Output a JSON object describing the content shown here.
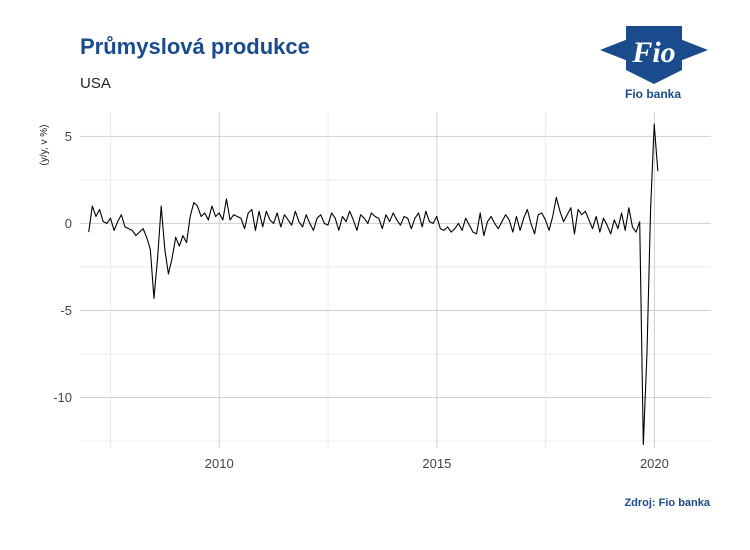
{
  "header": {
    "title": "Průmyslová produkce",
    "subtitle": "USA"
  },
  "brand": {
    "name": "Fio banka",
    "logo_glyph": "Fio",
    "color": "#1a4b8c"
  },
  "footer": {
    "source": "Zdroj: Fio banka"
  },
  "chart_data": {
    "type": "line",
    "title": "Průmyslová produkce",
    "subtitle": "USA",
    "xlabel": "",
    "ylabel": "(y/y, v %)",
    "xlim": [
      2006.8,
      2021.3
    ],
    "ylim": [
      -12.9,
      6.4
    ],
    "x_ticks": [
      2010,
      2015,
      2020
    ],
    "x_tick_labels": [
      "2010",
      "2015",
      "2020"
    ],
    "y_ticks": [
      5,
      0,
      -5,
      -10
    ],
    "y_tick_labels": [
      "5",
      "0",
      "-5",
      "-10"
    ],
    "grid": true,
    "legend": "none",
    "line_color": "#000000",
    "x_start": 2007.0,
    "x_step": 0.0833,
    "series": [
      {
        "values": [
          -0.5,
          1.0,
          0.4,
          0.8,
          0.1,
          0.0,
          0.3,
          -0.4,
          0.1,
          0.5,
          -0.2,
          -0.3,
          -0.4,
          -0.7,
          -0.5,
          -0.3,
          -0.8,
          -1.5,
          -4.3,
          -2.0,
          1.0,
          -1.5,
          -2.9,
          -2.0,
          -0.8,
          -1.3,
          -0.7,
          -1.1,
          0.4,
          1.2,
          1.0,
          0.4,
          0.6,
          0.2,
          1.0,
          0.4,
          0.6,
          0.2,
          1.4,
          0.2,
          0.5,
          0.4,
          0.3,
          -0.3,
          0.6,
          0.8,
          -0.4,
          0.7,
          -0.2,
          0.7,
          0.2,
          0.0,
          0.6,
          -0.2,
          0.5,
          0.2,
          -0.1,
          0.7,
          0.1,
          -0.2,
          0.5,
          0.0,
          -0.4,
          0.3,
          0.5,
          0.0,
          -0.1,
          0.6,
          0.3,
          -0.4,
          0.4,
          0.1,
          0.7,
          0.2,
          -0.4,
          0.5,
          0.3,
          0.0,
          0.6,
          0.4,
          0.3,
          -0.3,
          0.5,
          0.1,
          0.6,
          0.2,
          -0.1,
          0.4,
          0.3,
          -0.3,
          0.3,
          0.6,
          -0.2,
          0.7,
          0.1,
          0.0,
          0.4,
          -0.3,
          -0.4,
          -0.2,
          -0.5,
          -0.3,
          0.0,
          -0.4,
          0.3,
          -0.1,
          -0.5,
          -0.6,
          0.6,
          -0.7,
          0.1,
          0.4,
          0.0,
          -0.3,
          0.1,
          0.5,
          0.2,
          -0.5,
          0.4,
          -0.4,
          0.3,
          0.8,
          0.0,
          -0.6,
          0.5,
          0.6,
          0.2,
          -0.4,
          0.4,
          1.5,
          0.7,
          0.1,
          0.5,
          0.9,
          -0.6,
          0.8,
          0.5,
          0.7,
          0.2,
          -0.3,
          0.4,
          -0.5,
          0.3,
          -0.1,
          -0.6,
          0.2,
          -0.3,
          0.6,
          -0.4,
          0.9,
          -0.2,
          -0.5,
          0.1,
          -12.7,
          -7.5,
          0.8,
          5.7,
          3.0
        ]
      }
    ]
  }
}
